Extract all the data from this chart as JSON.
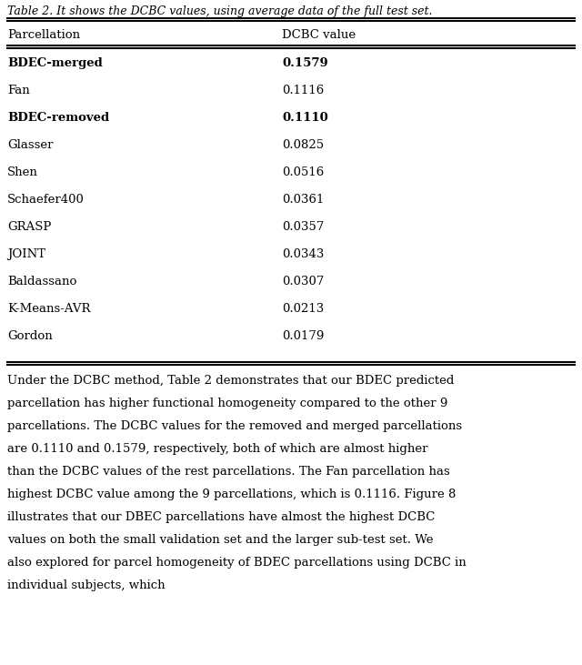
{
  "caption": "Table 2. It shows the DCBC values, using average data of the full test set.",
  "col_headers": [
    "Parcellation",
    "DCBC value"
  ],
  "rows": [
    {
      "name": "BDEC-merged",
      "value": "0.1579",
      "bold": true
    },
    {
      "name": "Fan",
      "value": "0.1116",
      "bold": false
    },
    {
      "name": "BDEC-removed",
      "value": "0.1110",
      "bold": true
    },
    {
      "name": "Glasser",
      "value": "0.0825",
      "bold": false
    },
    {
      "name": "Shen",
      "value": "0.0516",
      "bold": false
    },
    {
      "name": "Schaefer400",
      "value": "0.0361",
      "bold": false
    },
    {
      "name": "GRASP",
      "value": "0.0357",
      "bold": false
    },
    {
      "name": "JOINT",
      "value": "0.0343",
      "bold": false
    },
    {
      "name": "Baldassano",
      "value": "0.0307",
      "bold": false
    },
    {
      "name": "K-Means-AVR",
      "value": "0.0213",
      "bold": false
    },
    {
      "name": "Gordon",
      "value": "0.0179",
      "bold": false
    }
  ],
  "paragraph": "Under the DCBC method, Table 2 demonstrates that our BDEC predicted parcellation has higher functional homogeneity compared to the other 9 parcellations. The DCBC values for the removed and merged parcellations are 0.1110 and 0.1579, respectively, both of which are almost higher than the DCBC values of the rest parcellations. The Fan parcellation has highest DCBC value among the 9 parcellations, which is 0.1116. Figure 8 illustrates that our DBEC parcellations have almost the highest DCBC values on both the small validation set and the larger sub-test set. We also explored for parcel homogeneity of BDEC parcellations using DCBC in individual subjects, which",
  "bg_color": "#ffffff",
  "text_color": "#000000",
  "caption_fontsize": 9,
  "header_fontsize": 9.5,
  "row_fontsize": 9.5,
  "para_fontsize": 9.5,
  "fig_width": 6.4,
  "fig_height": 7.31
}
